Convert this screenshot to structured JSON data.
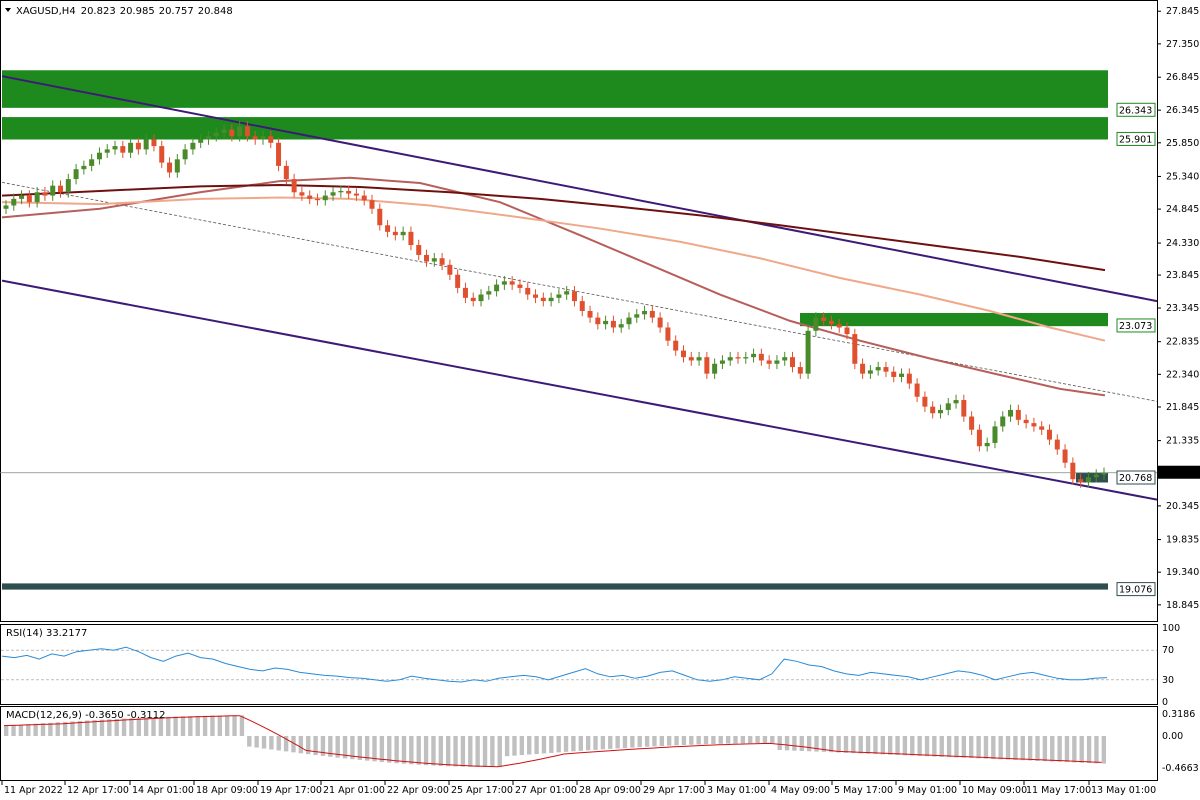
{
  "header": {
    "symbol": "XAGUSD,H4",
    "open": "20.823",
    "high": "20.985",
    "low": "20.757",
    "close": "20.848"
  },
  "rsi_label": "RSI(14) 33.2177",
  "macd_label": "MACD(12,26,9) -0.3650 -0.3112",
  "colors": {
    "bull": "#4a8a2a",
    "bear": "#e0502e",
    "zone_green": "#1e8a1e",
    "zone_dark": "#2f4f4f",
    "channel": "#3d1a78",
    "ma_fast": "#b75f5a",
    "ma_mid": "#f0a88a",
    "ma_slow": "#6e1010",
    "rsi": "#2a8ad6",
    "macd_signal": "#d01010",
    "macd_hist": "#c0c0c0"
  },
  "chart_data": {
    "type": "candlestick",
    "title": "XAGUSD,H4",
    "ylim": [
      18.6,
      28.0
    ],
    "price_ticks": [
      "27.845",
      "27.350",
      "26.845",
      "26.345",
      "25.850",
      "25.340",
      "24.845",
      "24.330",
      "23.845",
      "23.345",
      "22.835",
      "22.340",
      "21.845",
      "21.335",
      "20.845",
      "20.345",
      "19.835",
      "19.340",
      "18.845"
    ],
    "x_labels": [
      "11 Apr 2022",
      "12 Apr 17:00",
      "14 Apr 01:00",
      "18 Apr 09:00",
      "19 Apr 17:00",
      "21 Apr 01:00",
      "22 Apr 09:00",
      "25 Apr 17:00",
      "27 Apr 01:00",
      "28 Apr 09:00",
      "29 Apr 17:00",
      "3 May 01:00",
      "4 May 09:00",
      "5 May 17:00",
      "9 May 01:00",
      "10 May 09:00",
      "11 May 17:00",
      "13 May 01:00"
    ],
    "current_price": "20.848",
    "zones": [
      {
        "top": 26.95,
        "bottom": 26.38,
        "label": ""
      },
      {
        "top": 26.24,
        "bottom": 25.9,
        "label": "26.343"
      },
      {
        "top": 26.24,
        "bottom": 25.9,
        "label": "25.901"
      },
      {
        "top": 23.27,
        "bottom": 23.07,
        "label": "23.073"
      },
      {
        "top": 20.85,
        "bottom": 20.768,
        "label": "20.768"
      },
      {
        "top": 19.17,
        "bottom": 19.076,
        "label": "19.076"
      }
    ],
    "rsi": {
      "levels": [
        "100",
        "70",
        "30",
        "0"
      ],
      "current": 33.2177
    },
    "macd": {
      "ticks": [
        "0.3186",
        "0.00",
        "-0.4663"
      ],
      "main": -0.365,
      "signal": -0.3112
    }
  }
}
